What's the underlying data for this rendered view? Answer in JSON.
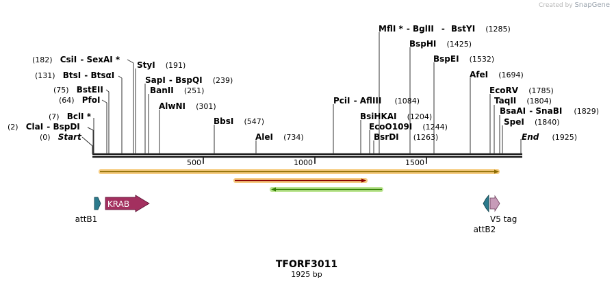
{
  "branding": {
    "created_by": "Created by",
    "app": "SnapGene"
  },
  "map": {
    "name": "TFORF3011",
    "length_label": "1925 bp",
    "length": 1925,
    "backbone_color": "#1a1a1a",
    "ticks": [
      {
        "pos": 500,
        "label": "500"
      },
      {
        "pos": 1000,
        "label": "1000"
      },
      {
        "pos": 1500,
        "label": "1500"
      }
    ],
    "left_sites": [
      {
        "name": "CsiI",
        "pos": 182,
        "pos_label": "(182)",
        "name2": "SexAI *",
        "sep": " - "
      },
      {
        "name": "BtsI",
        "pos": 131,
        "pos_label": "(131)",
        "name2": "BtsαI",
        "sep": " - "
      },
      {
        "name": "BstEII",
        "pos": 75,
        "pos_label": "(75)"
      },
      {
        "name": "PfoI",
        "pos": 64,
        "pos_label": "(64)"
      },
      {
        "name": "BclI *",
        "pos": 7,
        "pos_label": "(7)"
      },
      {
        "name": "ClaI",
        "pos": 2,
        "pos_label": "(2)",
        "name2": "BspDI",
        "sep": " - "
      },
      {
        "name": "Start",
        "pos": 0,
        "pos_label": "(0)",
        "italic": true
      }
    ],
    "mid_sites": [
      {
        "name": "StyI",
        "pos": 191,
        "pos_label": "(191)"
      },
      {
        "name": "SapI",
        "pos": 239,
        "pos_label": "(239)",
        "name2": "BspQI",
        "sep": " - "
      },
      {
        "name": "BanII",
        "pos": 251,
        "pos_label": "(251)"
      },
      {
        "name": "AlwNI",
        "pos": 301,
        "pos_label": "(301)"
      },
      {
        "name": "BbsI",
        "pos": 547,
        "pos_label": "(547)"
      },
      {
        "name": "AleI",
        "pos": 734,
        "pos_label": "(734)"
      }
    ],
    "right_sites": [
      {
        "name": "MflI *",
        "pos": 1285,
        "pos_label": "(1285)",
        "name2": "BglII",
        "name3": "BstYI",
        "sep": " - "
      },
      {
        "name": "BspHI",
        "pos": 1425,
        "pos_label": "(1425)"
      },
      {
        "name": "BspEI",
        "pos": 1532,
        "pos_label": "(1532)"
      },
      {
        "name": "AfeI",
        "pos": 1694,
        "pos_label": "(1694)"
      },
      {
        "name": "EcoRV",
        "pos": 1785,
        "pos_label": "(1785)"
      },
      {
        "name": "TaqII",
        "pos": 1804,
        "pos_label": "(1804)"
      },
      {
        "name": "BsaAI",
        "pos": 1829,
        "pos_label": "(1829)",
        "name2": "SnaBI",
        "sep": " - "
      },
      {
        "name": "SpeI",
        "pos": 1840,
        "pos_label": "(1840)"
      },
      {
        "name": "PciI",
        "pos": 1084,
        "pos_label": "(1084)",
        "name2": "AflIII",
        "sep": " - "
      },
      {
        "name": "BsiHKAI",
        "pos": 1204,
        "pos_label": "(1204)"
      },
      {
        "name": "EcoO109I",
        "pos": 1244,
        "pos_label": "(1244)"
      },
      {
        "name": "BsrDI",
        "pos": 1263,
        "pos_label": "(1263)"
      },
      {
        "name": "End",
        "pos": 1925,
        "pos_label": "(1925)",
        "italic": true
      }
    ],
    "orf_arrows": [
      {
        "name": "orf-long",
        "start": 30,
        "end": 1825,
        "direction": "forward",
        "fill": "#f5c97a",
        "line": "#8a6a00"
      },
      {
        "name": "orf-mid",
        "start": 640,
        "end": 1230,
        "direction": "forward",
        "fill": "#f5c97a",
        "line": "#8b0000"
      },
      {
        "name": "orf-reverse",
        "start": 800,
        "end": 1300,
        "direction": "reverse",
        "fill": "#b6e389",
        "line": "#2e7d00"
      }
    ],
    "features": [
      {
        "label": "attB1",
        "color": "#2b7a8c"
      },
      {
        "label": "KRAB",
        "color": "#a3305f",
        "text_color": "#ffffff"
      },
      {
        "label": "attB2",
        "color": "#2b7a8c"
      },
      {
        "label": "V5 tag",
        "color": "#c79bb8"
      }
    ]
  }
}
